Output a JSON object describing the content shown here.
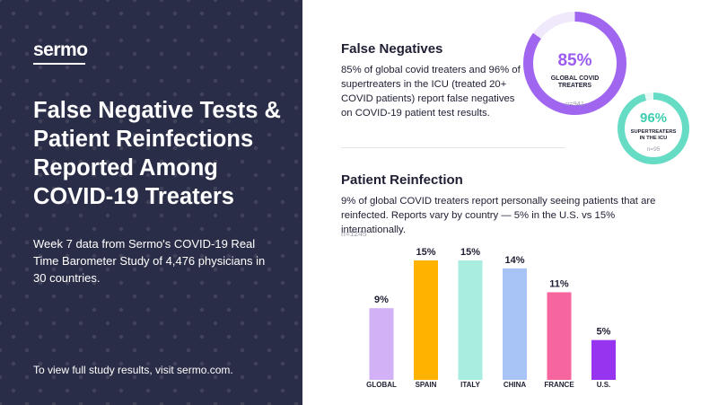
{
  "left": {
    "logo": "sermo",
    "title": "False Negative Tests & Patient Reinfections Reported Among COVID-19 Treaters",
    "subtitle": "Week 7 data from Sermo's COVID-19 Real Time Barometer Study of 4,476 physicians in 30 countries.",
    "footer": "To view full study results, visit sermo.com."
  },
  "false_negatives": {
    "title": "False Negatives",
    "body": "85% of global covid treaters and 96% of supertreaters in the ICU (treated 20+ COVID patients) report false negatives on COVID-19 patient test results.",
    "donuts": [
      {
        "pct_label": "85%",
        "value": 85,
        "label_line1": "GLOBAL COVID",
        "label_line2": "TREATERS",
        "n": "n=941",
        "color": "#a066f0",
        "track": "#f0e9fb"
      },
      {
        "pct_label": "96%",
        "value": 96,
        "label_line1": "SUPERTREATERS",
        "label_line2": "IN THE ICU",
        "n": "n=95",
        "color": "#66dcc4",
        "track": "#e6f9f4"
      }
    ]
  },
  "reinfection": {
    "title": "Patient Reinfection",
    "body": "9% of global COVID treaters report personally seeing patients that are reinfected. Reports vary by country — 5% in the U.S. vs 15% internationally.",
    "n": "n=1245"
  },
  "chart_data": {
    "type": "bar",
    "categories": [
      "GLOBAL",
      "SPAIN",
      "ITALY",
      "CHINA",
      "FRANCE",
      "U.S."
    ],
    "values": [
      9,
      15,
      15,
      14,
      11,
      5
    ],
    "value_labels": [
      "9%",
      "15%",
      "15%",
      "14%",
      "11%",
      "5%"
    ],
    "colors": [
      "#d2b1f6",
      "#ffb300",
      "#a9ece0",
      "#a8c4f6",
      "#f6659e",
      "#9634f0"
    ],
    "ylim": [
      0,
      15
    ],
    "grid": false
  }
}
